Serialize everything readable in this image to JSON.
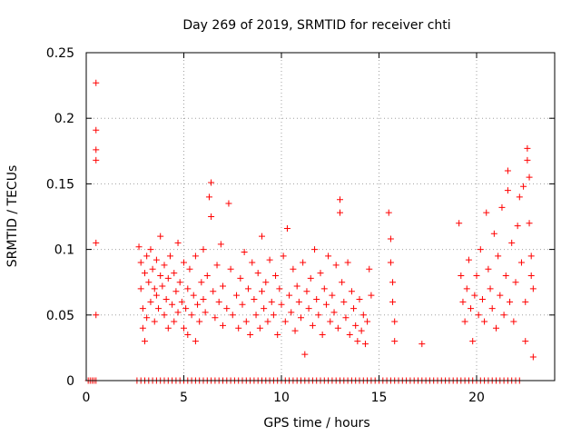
{
  "chart_data": {
    "type": "scatter",
    "title": "Day 269 of 2019, SRMTID for receiver chti",
    "xlabel": "GPS time / hours",
    "ylabel": "SRMTID / TECUs",
    "xlim": [
      0,
      24
    ],
    "ylim": [
      0,
      0.25
    ],
    "xticks": [
      0,
      5,
      10,
      15,
      20
    ],
    "xtick_labels": [
      "0",
      "5",
      "10",
      "15",
      "20"
    ],
    "yticks": [
      0,
      0.05,
      0.1,
      0.15,
      0.2,
      0.25
    ],
    "ytick_labels": [
      "0",
      "0.05",
      "0.1",
      "0.15",
      "0.2",
      "0.25"
    ],
    "grid": true,
    "legend": "none",
    "marker": "plus",
    "series": [
      {
        "name": "SRMTID",
        "color": "#ff0000",
        "points": [
          [
            0.5,
            0.227
          ],
          [
            0.5,
            0.191
          ],
          [
            0.5,
            0.176
          ],
          [
            0.5,
            0.168
          ],
          [
            0.5,
            0.105
          ],
          [
            0.5,
            0.05
          ],
          [
            2.7,
            0.102
          ],
          [
            2.8,
            0.09
          ],
          [
            2.8,
            0.07
          ],
          [
            2.9,
            0.055
          ],
          [
            2.9,
            0.04
          ],
          [
            3.0,
            0.082
          ],
          [
            3.0,
            0.03
          ],
          [
            3.1,
            0.095
          ],
          [
            3.1,
            0.048
          ],
          [
            3.2,
            0.075
          ],
          [
            3.3,
            0.06
          ],
          [
            3.3,
            0.1
          ],
          [
            3.4,
            0.085
          ],
          [
            3.5,
            0.045
          ],
          [
            3.5,
            0.07
          ],
          [
            3.6,
            0.092
          ],
          [
            3.6,
            0.065
          ],
          [
            3.7,
            0.055
          ],
          [
            3.8,
            0.08
          ],
          [
            3.8,
            0.11
          ],
          [
            3.9,
            0.072
          ],
          [
            4.0,
            0.05
          ],
          [
            4.0,
            0.088
          ],
          [
            4.1,
            0.062
          ],
          [
            4.2,
            0.04
          ],
          [
            4.2,
            0.078
          ],
          [
            4.3,
            0.095
          ],
          [
            4.4,
            0.058
          ],
          [
            4.5,
            0.082
          ],
          [
            4.5,
            0.045
          ],
          [
            4.6,
            0.068
          ],
          [
            4.7,
            0.105
          ],
          [
            4.7,
            0.052
          ],
          [
            4.8,
            0.075
          ],
          [
            4.9,
            0.06
          ],
          [
            5.0,
            0.04
          ],
          [
            5.0,
            0.09
          ],
          [
            5.1,
            0.055
          ],
          [
            5.2,
            0.07
          ],
          [
            5.2,
            0.035
          ],
          [
            5.3,
            0.085
          ],
          [
            5.4,
            0.05
          ],
          [
            5.5,
            0.065
          ],
          [
            5.6,
            0.03
          ],
          [
            5.6,
            0.095
          ],
          [
            5.7,
            0.058
          ],
          [
            5.8,
            0.045
          ],
          [
            5.9,
            0.075
          ],
          [
            6.0,
            0.062
          ],
          [
            6.0,
            0.1
          ],
          [
            6.1,
            0.052
          ],
          [
            6.2,
            0.08
          ],
          [
            6.3,
            0.14
          ],
          [
            6.4,
            0.151
          ],
          [
            6.4,
            0.125
          ],
          [
            6.5,
            0.068
          ],
          [
            6.6,
            0.048
          ],
          [
            6.7,
            0.088
          ],
          [
            6.8,
            0.06
          ],
          [
            6.9,
            0.104
          ],
          [
            7.0,
            0.072
          ],
          [
            7.0,
            0.042
          ],
          [
            7.2,
            0.055
          ],
          [
            7.3,
            0.135
          ],
          [
            7.4,
            0.085
          ],
          [
            7.5,
            0.05
          ],
          [
            7.7,
            0.065
          ],
          [
            7.8,
            0.04
          ],
          [
            7.9,
            0.078
          ],
          [
            8.0,
            0.058
          ],
          [
            8.1,
            0.098
          ],
          [
            8.2,
            0.045
          ],
          [
            8.3,
            0.07
          ],
          [
            8.4,
            0.035
          ],
          [
            8.5,
            0.09
          ],
          [
            8.6,
            0.062
          ],
          [
            8.7,
            0.05
          ],
          [
            8.8,
            0.082
          ],
          [
            8.9,
            0.04
          ],
          [
            9.0,
            0.068
          ],
          [
            9.0,
            0.11
          ],
          [
            9.1,
            0.055
          ],
          [
            9.2,
            0.075
          ],
          [
            9.3,
            0.045
          ],
          [
            9.4,
            0.092
          ],
          [
            9.5,
            0.06
          ],
          [
            9.6,
            0.05
          ],
          [
            9.7,
            0.08
          ],
          [
            9.8,
            0.035
          ],
          [
            9.9,
            0.07
          ],
          [
            10.0,
            0.058
          ],
          [
            10.1,
            0.095
          ],
          [
            10.2,
            0.045
          ],
          [
            10.3,
            0.116
          ],
          [
            10.4,
            0.065
          ],
          [
            10.5,
            0.052
          ],
          [
            10.6,
            0.085
          ],
          [
            10.7,
            0.038
          ],
          [
            10.8,
            0.072
          ],
          [
            10.9,
            0.06
          ],
          [
            11.0,
            0.048
          ],
          [
            11.1,
            0.09
          ],
          [
            11.2,
            0.02
          ],
          [
            11.3,
            0.068
          ],
          [
            11.4,
            0.055
          ],
          [
            11.5,
            0.078
          ],
          [
            11.6,
            0.042
          ],
          [
            11.7,
            0.1
          ],
          [
            11.8,
            0.062
          ],
          [
            11.9,
            0.05
          ],
          [
            12.0,
            0.082
          ],
          [
            12.1,
            0.035
          ],
          [
            12.2,
            0.07
          ],
          [
            12.3,
            0.058
          ],
          [
            12.4,
            0.095
          ],
          [
            12.5,
            0.045
          ],
          [
            12.6,
            0.065
          ],
          [
            12.7,
            0.052
          ],
          [
            12.8,
            0.088
          ],
          [
            12.9,
            0.04
          ],
          [
            13.0,
            0.138
          ],
          [
            13.0,
            0.128
          ],
          [
            13.1,
            0.075
          ],
          [
            13.2,
            0.06
          ],
          [
            13.3,
            0.048
          ],
          [
            13.4,
            0.09
          ],
          [
            13.5,
            0.035
          ],
          [
            13.6,
            0.068
          ],
          [
            13.7,
            0.055
          ],
          [
            13.8,
            0.042
          ],
          [
            13.9,
            0.03
          ],
          [
            14.0,
            0.062
          ],
          [
            14.1,
            0.038
          ],
          [
            14.2,
            0.05
          ],
          [
            14.3,
            0.028
          ],
          [
            14.4,
            0.045
          ],
          [
            14.5,
            0.085
          ],
          [
            14.6,
            0.065
          ],
          [
            15.5,
            0.128
          ],
          [
            15.6,
            0.108
          ],
          [
            15.6,
            0.09
          ],
          [
            15.7,
            0.075
          ],
          [
            15.7,
            0.06
          ],
          [
            15.8,
            0.045
          ],
          [
            15.8,
            0.03
          ],
          [
            17.2,
            0.028
          ],
          [
            19.1,
            0.12
          ],
          [
            19.2,
            0.08
          ],
          [
            19.3,
            0.06
          ],
          [
            19.4,
            0.045
          ],
          [
            19.5,
            0.07
          ],
          [
            19.6,
            0.092
          ],
          [
            19.7,
            0.055
          ],
          [
            19.8,
            0.03
          ],
          [
            19.9,
            0.065
          ],
          [
            20.0,
            0.08
          ],
          [
            20.1,
            0.05
          ],
          [
            20.2,
            0.1
          ],
          [
            20.3,
            0.062
          ],
          [
            20.4,
            0.045
          ],
          [
            20.5,
            0.128
          ],
          [
            20.6,
            0.085
          ],
          [
            20.7,
            0.07
          ],
          [
            20.8,
            0.055
          ],
          [
            20.9,
            0.112
          ],
          [
            21.0,
            0.04
          ],
          [
            21.1,
            0.095
          ],
          [
            21.2,
            0.065
          ],
          [
            21.3,
            0.132
          ],
          [
            21.4,
            0.05
          ],
          [
            21.5,
            0.08
          ],
          [
            21.6,
            0.16
          ],
          [
            21.6,
            0.145
          ],
          [
            21.7,
            0.06
          ],
          [
            21.8,
            0.105
          ],
          [
            21.9,
            0.045
          ],
          [
            22.0,
            0.075
          ],
          [
            22.1,
            0.118
          ],
          [
            22.2,
            0.14
          ],
          [
            22.3,
            0.09
          ],
          [
            22.4,
            0.148
          ],
          [
            22.5,
            0.06
          ],
          [
            22.5,
            0.03
          ],
          [
            22.6,
            0.168
          ],
          [
            22.6,
            0.177
          ],
          [
            22.7,
            0.155
          ],
          [
            22.7,
            0.12
          ],
          [
            22.8,
            0.095
          ],
          [
            22.8,
            0.08
          ],
          [
            22.9,
            0.07
          ],
          [
            22.9,
            0.018
          ]
        ]
      }
    ],
    "zero_points_x": [
      0.1,
      0.2,
      0.3,
      0.4,
      0.5,
      2.6,
      2.8,
      3.0,
      3.2,
      3.4,
      3.6,
      3.8,
      4.0,
      4.2,
      4.4,
      4.6,
      4.8,
      5.0,
      5.2,
      5.4,
      5.6,
      5.8,
      6.0,
      6.2,
      6.4,
      6.6,
      6.8,
      7.0,
      7.2,
      7.4,
      7.6,
      7.8,
      8.0,
      8.2,
      8.4,
      8.6,
      8.8,
      9.0,
      9.2,
      9.4,
      9.6,
      9.8,
      10.0,
      10.2,
      10.4,
      10.6,
      10.8,
      11.0,
      11.2,
      11.4,
      11.6,
      11.8,
      12.0,
      12.2,
      12.4,
      12.6,
      12.8,
      13.0,
      13.2,
      13.4,
      13.6,
      13.8,
      14.0,
      14.2,
      14.4,
      14.6,
      14.8,
      15.0,
      15.2,
      15.4,
      15.6,
      15.8,
      16.0,
      16.2,
      16.4,
      16.6,
      16.8,
      17.0,
      17.2,
      17.4,
      17.6,
      17.8,
      18.0,
      18.2,
      18.4,
      18.6,
      18.8,
      19.0,
      19.2,
      19.4,
      19.6,
      19.8,
      20.0,
      20.2,
      20.4,
      20.6,
      20.8,
      21.0,
      21.2,
      21.4,
      21.6,
      21.8,
      22.0,
      22.2
    ]
  }
}
